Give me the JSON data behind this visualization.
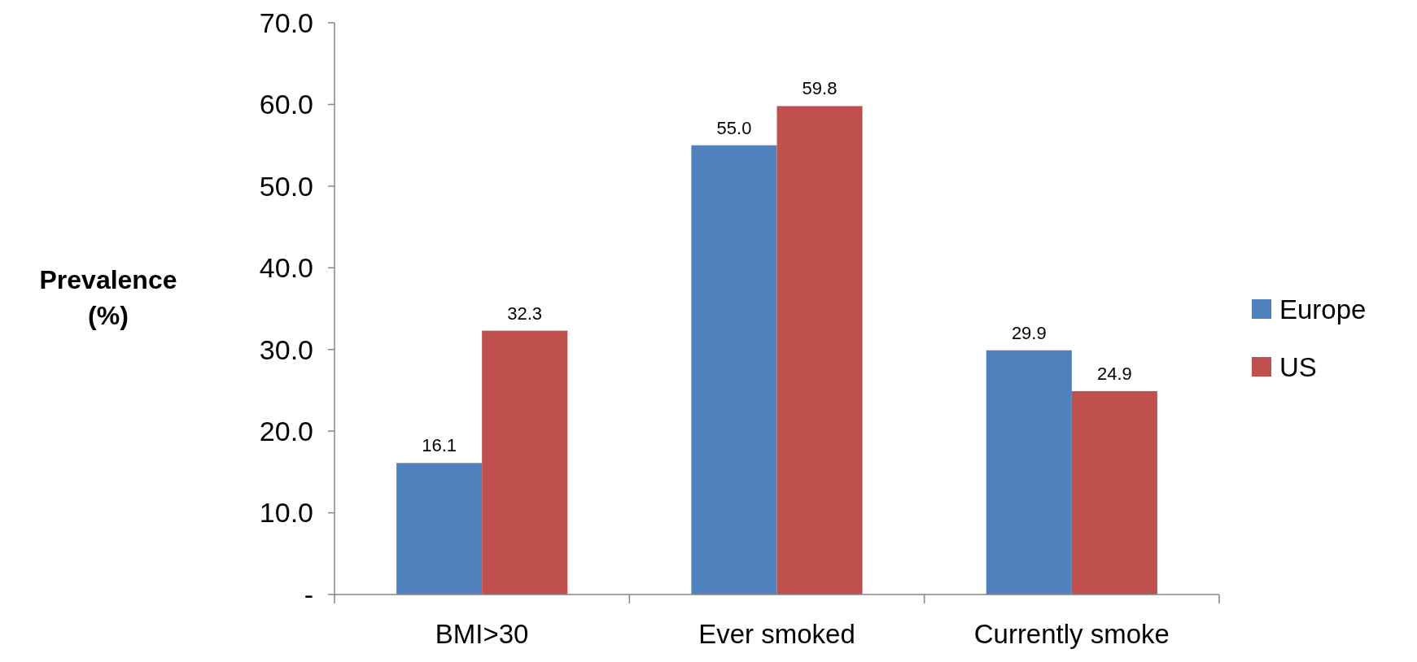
{
  "chart_data": {
    "type": "bar",
    "ylabel": "Prevalence (%)",
    "categories": [
      "BMI>30",
      "Ever smoked",
      "Currently smoke"
    ],
    "series": [
      {
        "name": "Europe",
        "color": "#4f81bd",
        "values": [
          16.1,
          55.0,
          29.9
        ],
        "value_labels": [
          "16.1",
          "55.0",
          "29.9"
        ]
      },
      {
        "name": "US",
        "color": "#c0504d",
        "values": [
          32.3,
          59.8,
          24.9
        ],
        "value_labels": [
          "32.3",
          "59.8",
          "24.9"
        ]
      }
    ],
    "ylim": [
      0,
      70
    ],
    "yticks": [
      {
        "value": 0,
        "label": "-"
      },
      {
        "value": 10,
        "label": "10.0"
      },
      {
        "value": 20,
        "label": "20.0"
      },
      {
        "value": 30,
        "label": "30.0"
      },
      {
        "value": 40,
        "label": "40.0"
      },
      {
        "value": 50,
        "label": "50.0"
      },
      {
        "value": 60,
        "label": "60.0"
      },
      {
        "value": 70,
        "label": "70.0"
      }
    ],
    "legend": "right",
    "grid": false
  }
}
